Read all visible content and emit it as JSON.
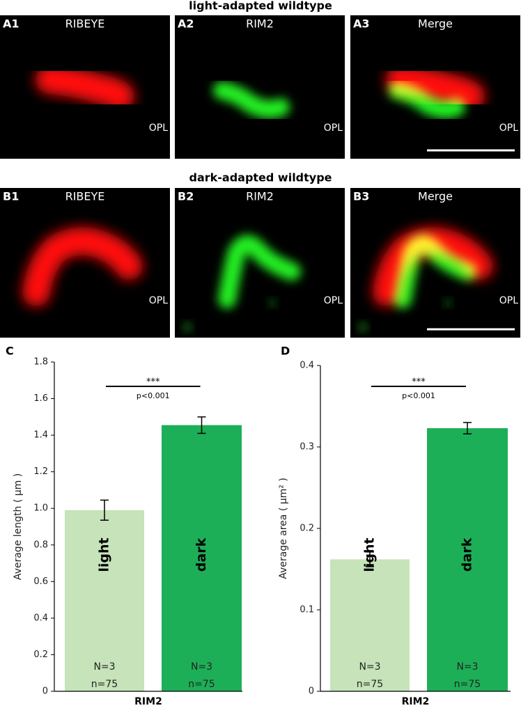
{
  "image_rows": [
    {
      "title": "light-adapted wildtype",
      "panels": [
        {
          "label": "A1",
          "name": "RIBEYE",
          "layer": "OPL"
        },
        {
          "label": "A2",
          "name": "RIM2",
          "layer": "OPL"
        },
        {
          "label": "A3",
          "name": "Merge",
          "layer": "OPL"
        }
      ]
    },
    {
      "title": "dark-adapted wildtype",
      "panels": [
        {
          "label": "B1",
          "name": "RIBEYE",
          "layer": "OPL"
        },
        {
          "label": "B2",
          "name": "RIM2",
          "layer": "OPL"
        },
        {
          "label": "B3",
          "name": "Merge",
          "layer": "OPL"
        }
      ]
    }
  ],
  "chart_data": [
    {
      "type": "bar",
      "panel_label": "C",
      "ylabel": "Average length ( µm )",
      "xlabel": "RIM2",
      "categories": [
        "light",
        "dark"
      ],
      "values": [
        0.99,
        1.455
      ],
      "errors": [
        0.055,
        0.045
      ],
      "colors": [
        "#c6e3b9",
        "#1daf57"
      ],
      "bar_notes": [
        [
          "N=3",
          "n=75"
        ],
        [
          "N=3",
          "n=75"
        ]
      ],
      "annotation": {
        "text": "***",
        "subtext": "p<0.001"
      },
      "ylim": [
        0,
        1.8
      ],
      "yticks": [
        0,
        0.2,
        0.4,
        0.6,
        0.8,
        {
          "value": 1,
          "label": "1.0"
        },
        1.2,
        1.4,
        1.6,
        1.8
      ]
    },
    {
      "type": "bar",
      "panel_label": "D",
      "ylabel": "Average area ( µm² )",
      "xlabel": "RIM2",
      "categories": [
        "light",
        "dark"
      ],
      "values": [
        0.162,
        0.323
      ],
      "errors": [
        0.009,
        0.007
      ],
      "colors": [
        "#c6e3b9",
        "#1daf57"
      ],
      "bar_notes": [
        [
          "N=3",
          "n=75"
        ],
        [
          "N=3",
          "n=75"
        ]
      ],
      "annotation": {
        "text": "***",
        "subtext": "p<0.001"
      },
      "ylim": [
        0,
        0.4
      ],
      "yticks": [
        0,
        0.1,
        0.2,
        0.3,
        0.4
      ]
    }
  ]
}
